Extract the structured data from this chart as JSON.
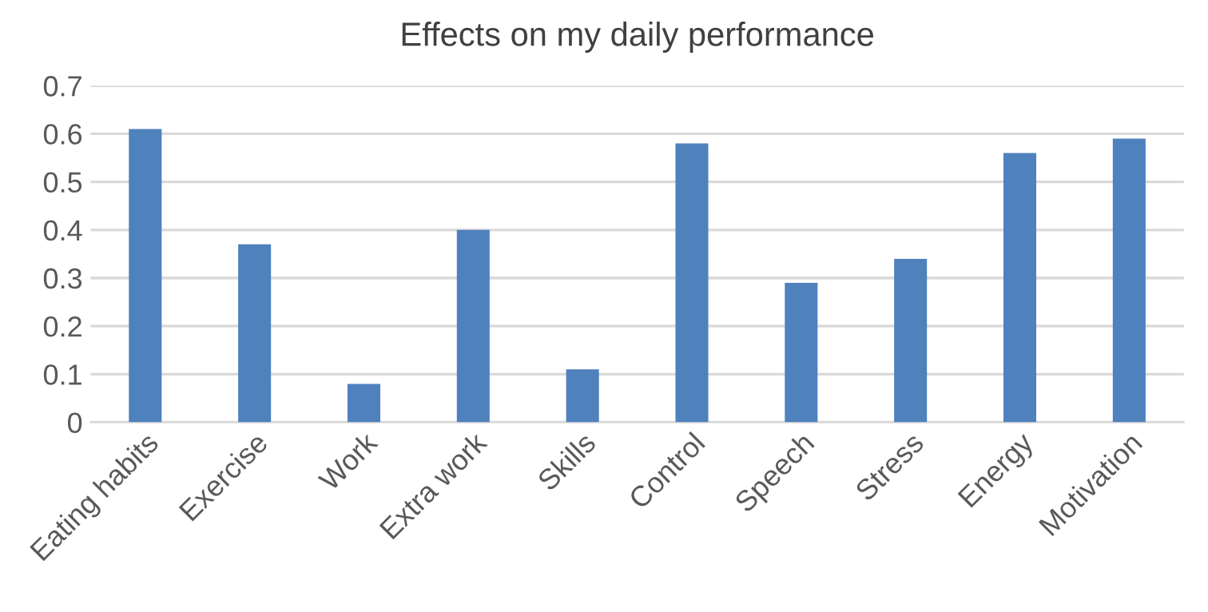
{
  "chart_data": {
    "type": "bar",
    "title": "Effects on my daily performance",
    "categories": [
      "Eating habits",
      "Exercise",
      "Work",
      "Extra work",
      "Skills",
      "Control",
      "Speech",
      "Stress",
      "Energy",
      "Motivation"
    ],
    "series": [
      {
        "color": "#4f81bd",
        "values": [
          0.61,
          0.37,
          0.08,
          0.4,
          0.11,
          0.58,
          0.29,
          0.34,
          0.56,
          0.59
        ]
      }
    ],
    "ylim": [
      0,
      0.7
    ],
    "yticks": [
      0,
      0.1,
      0.2,
      0.3,
      0.4,
      0.5,
      0.6,
      0.7
    ],
    "grid": "y",
    "legend": false
  }
}
